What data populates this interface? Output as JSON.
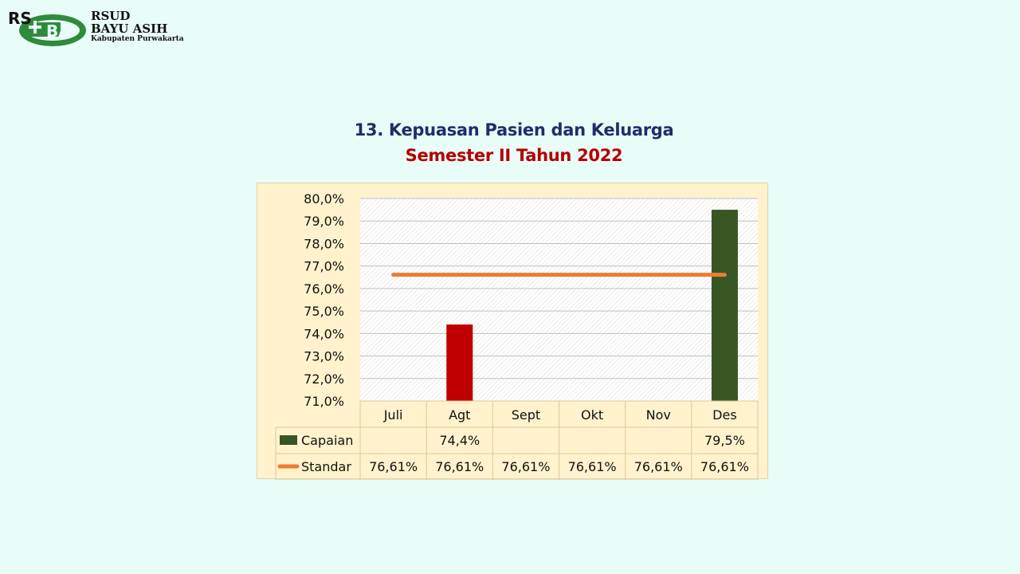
{
  "logo": {
    "line1": "RSUD",
    "line2": "BAYU ASIH",
    "line3": "Kabupaten Purwakarta"
  },
  "heading": {
    "title": "13. Kepuasan Pasien dan Keluarga",
    "subtitle": "Semester II Tahun 2022"
  },
  "colors": {
    "capaian": "#375623",
    "capaian_agt": "#c00000",
    "standar": "#ed7d31",
    "title": "#1f2d6b",
    "subtitle": "#b30000"
  },
  "chart_data": {
    "type": "bar",
    "categories": [
      "Juli",
      "Agt",
      "Sept",
      "Okt",
      "Nov",
      "Des"
    ],
    "ylim": [
      71.0,
      80.0
    ],
    "yticks": [
      "71,0%",
      "72,0%",
      "73,0%",
      "74,0%",
      "75,0%",
      "76,0%",
      "77,0%",
      "78,0%",
      "79,0%",
      "80,0%"
    ],
    "series": [
      {
        "name": "Capaian",
        "kind": "bar",
        "values": [
          null,
          74.4,
          null,
          null,
          null,
          79.5
        ],
        "labels": [
          "",
          "74,4%",
          "",
          "",
          "",
          "79,5%"
        ]
      },
      {
        "name": "Standar",
        "kind": "line",
        "values": [
          76.61,
          76.61,
          76.61,
          76.61,
          76.61,
          76.61
        ],
        "labels": [
          "76,61%",
          "76,61%",
          "76,61%",
          "76,61%",
          "76,61%",
          "76,61%"
        ]
      }
    ],
    "legend": "data-table"
  }
}
